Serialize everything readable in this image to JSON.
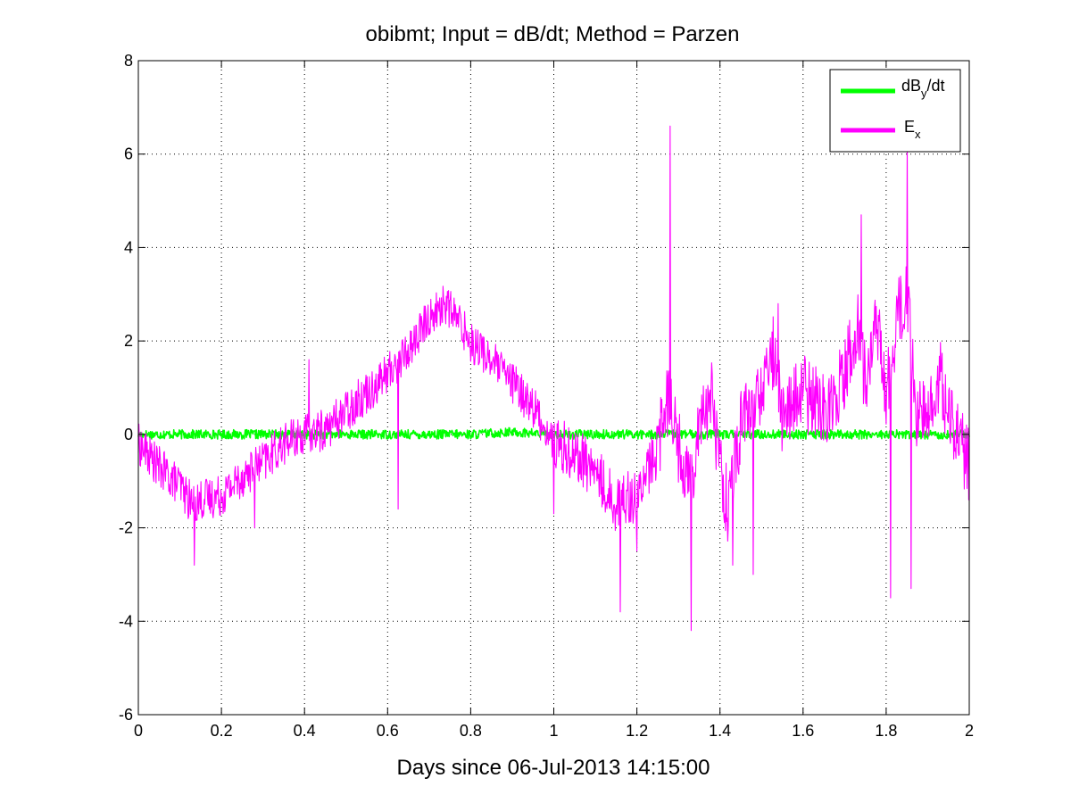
{
  "chart_data": {
    "type": "line",
    "title": "obibmt; Input = dB/dt; Method = Parzen",
    "xlabel": "Days since 06-Jul-2013 14:15:00",
    "ylabel": "",
    "xlim": [
      0,
      2
    ],
    "ylim": [
      -6,
      8
    ],
    "xticks": [
      0,
      0.2,
      0.4,
      0.6,
      0.8,
      1,
      1.2,
      1.4,
      1.6,
      1.8,
      2
    ],
    "xtick_labels": [
      "0",
      "0.2",
      "0.4",
      "0.6",
      "0.8",
      "1",
      "1.2",
      "1.4",
      "1.6",
      "1.8",
      "2"
    ],
    "yticks": [
      -6,
      -4,
      -2,
      0,
      2,
      4,
      6,
      8
    ],
    "ytick_labels": [
      "-6",
      "-4",
      "-2",
      "0",
      "2",
      "4",
      "6",
      "8"
    ],
    "grid": true,
    "legend_position": "top-right",
    "series": [
      {
        "name": "dBy/dt",
        "legend_main": "dB",
        "legend_sub": "y",
        "legend_tail": "/dt",
        "color": "#00ff00",
        "x": [
          0,
          0.1,
          0.2,
          0.3,
          0.4,
          0.5,
          0.6,
          0.7,
          0.8,
          0.9,
          1.0,
          1.1,
          1.2,
          1.3,
          1.4,
          1.5,
          1.6,
          1.7,
          1.8,
          1.9,
          2.0
        ],
        "y": [
          0.0,
          0.0,
          0.0,
          0.0,
          0.0,
          0.0,
          0.0,
          0.0,
          0.0,
          0.05,
          0.0,
          0.0,
          0.0,
          0.0,
          0.0,
          0.0,
          0.0,
          0.0,
          0.0,
          0.0,
          0.0
        ],
        "noise_amplitude": 0.1
      },
      {
        "name": "Ex",
        "legend_main": "E",
        "legend_sub": "x",
        "legend_tail": "",
        "color": "#ff00ff",
        "x": [
          0,
          0.05,
          0.1,
          0.13,
          0.15,
          0.2,
          0.25,
          0.3,
          0.35,
          0.4,
          0.45,
          0.5,
          0.55,
          0.6,
          0.65,
          0.7,
          0.74,
          0.78,
          0.8,
          0.85,
          0.9,
          0.95,
          1.0,
          1.05,
          1.1,
          1.15,
          1.18,
          1.2,
          1.25,
          1.27,
          1.28,
          1.3,
          1.33,
          1.35,
          1.38,
          1.4,
          1.42,
          1.45,
          1.5,
          1.53,
          1.55,
          1.6,
          1.65,
          1.7,
          1.73,
          1.75,
          1.78,
          1.8,
          1.83,
          1.85,
          1.87,
          1.9,
          1.93,
          1.95,
          2.0
        ],
        "y": [
          -0.2,
          -0.7,
          -1.1,
          -1.5,
          -1.4,
          -1.3,
          -0.9,
          -0.6,
          -0.2,
          0.0,
          0.1,
          0.5,
          0.9,
          1.3,
          1.8,
          2.5,
          2.8,
          2.3,
          2.0,
          1.6,
          1.1,
          0.6,
          -0.2,
          -0.4,
          -0.8,
          -1.5,
          -1.3,
          -1.4,
          -0.3,
          0.6,
          1.0,
          -0.3,
          -1.0,
          0.4,
          0.8,
          -0.6,
          -1.6,
          0.2,
          0.9,
          1.8,
          0.4,
          0.9,
          0.5,
          1.3,
          2.3,
          1.2,
          2.4,
          0.8,
          2.6,
          3.0,
          0.6,
          0.2,
          1.3,
          0.4,
          -0.7
        ],
        "noise_amplitude": 0.45,
        "spikes": [
          {
            "x": 0.135,
            "y": -2.8
          },
          {
            "x": 0.28,
            "y": -2.0
          },
          {
            "x": 0.41,
            "y": 1.6
          },
          {
            "x": 0.625,
            "y": -1.6
          },
          {
            "x": 1.0,
            "y": -1.7
          },
          {
            "x": 1.16,
            "y": -3.8
          },
          {
            "x": 1.2,
            "y": -2.5
          },
          {
            "x": 1.28,
            "y": 6.6
          },
          {
            "x": 1.33,
            "y": -4.2
          },
          {
            "x": 1.43,
            "y": -2.8
          },
          {
            "x": 1.48,
            "y": -3.0
          },
          {
            "x": 1.54,
            "y": 2.8
          },
          {
            "x": 1.74,
            "y": 4.7
          },
          {
            "x": 1.81,
            "y": -3.5
          },
          {
            "x": 1.85,
            "y": 6.3
          },
          {
            "x": 1.86,
            "y": -3.3
          }
        ]
      }
    ]
  }
}
